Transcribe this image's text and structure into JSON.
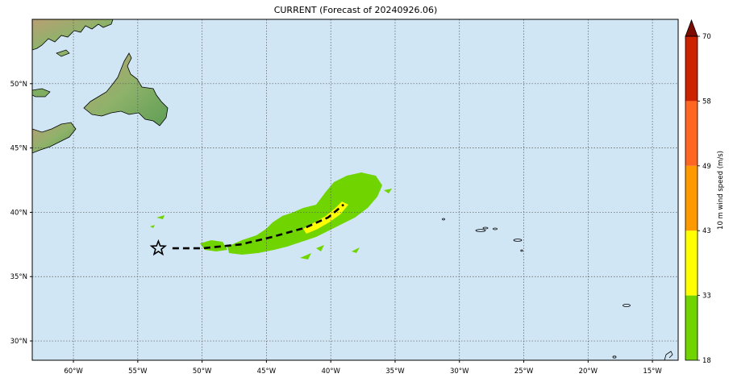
{
  "title": "CURRENT (Forecast of 20240926.06)",
  "map": {
    "ocean_color": "#d1e6f5",
    "lon_range": [
      -63.2,
      -13.0
    ],
    "lat_range": [
      28.5,
      55.0
    ],
    "lon_ticks": [
      {
        "value": -60,
        "label": "60°W"
      },
      {
        "value": -55,
        "label": "55°W"
      },
      {
        "value": -50,
        "label": "50°W"
      },
      {
        "value": -45,
        "label": "45°W"
      },
      {
        "value": -40,
        "label": "40°W"
      },
      {
        "value": -35,
        "label": "35°W"
      },
      {
        "value": -30,
        "label": "30°W"
      },
      {
        "value": -25,
        "label": "25°W"
      },
      {
        "value": -20,
        "label": "20°W"
      },
      {
        "value": -15,
        "label": "15°W"
      }
    ],
    "lat_ticks": [
      {
        "value": 30,
        "label": "30°N"
      },
      {
        "value": 35,
        "label": "35°N"
      },
      {
        "value": 40,
        "label": "40°N"
      },
      {
        "value": 45,
        "label": "45°N"
      },
      {
        "value": 50,
        "label": "50°N"
      }
    ],
    "current_position": {
      "lon": -53.4,
      "lat": 37.2
    },
    "track": [
      {
        "lon": -52.3,
        "lat": 37.2
      },
      {
        "lon": -50.0,
        "lat": 37.2
      },
      {
        "lon": -47.0,
        "lat": 37.5
      },
      {
        "lon": -44.5,
        "lat": 38.1
      },
      {
        "lon": -42.0,
        "lat": 38.8
      },
      {
        "lon": -40.2,
        "lat": 39.6
      },
      {
        "lon": -39.0,
        "lat": 40.6
      }
    ]
  },
  "colorbar": {
    "label": "10 m wind speed (m/s)",
    "ticks": [
      "18",
      "33",
      "43",
      "49",
      "58",
      "70"
    ],
    "colors": [
      "#6fd400",
      "#ffff00",
      "#ff9900",
      "#ff6622",
      "#cc2200",
      "#7a0d00"
    ]
  }
}
